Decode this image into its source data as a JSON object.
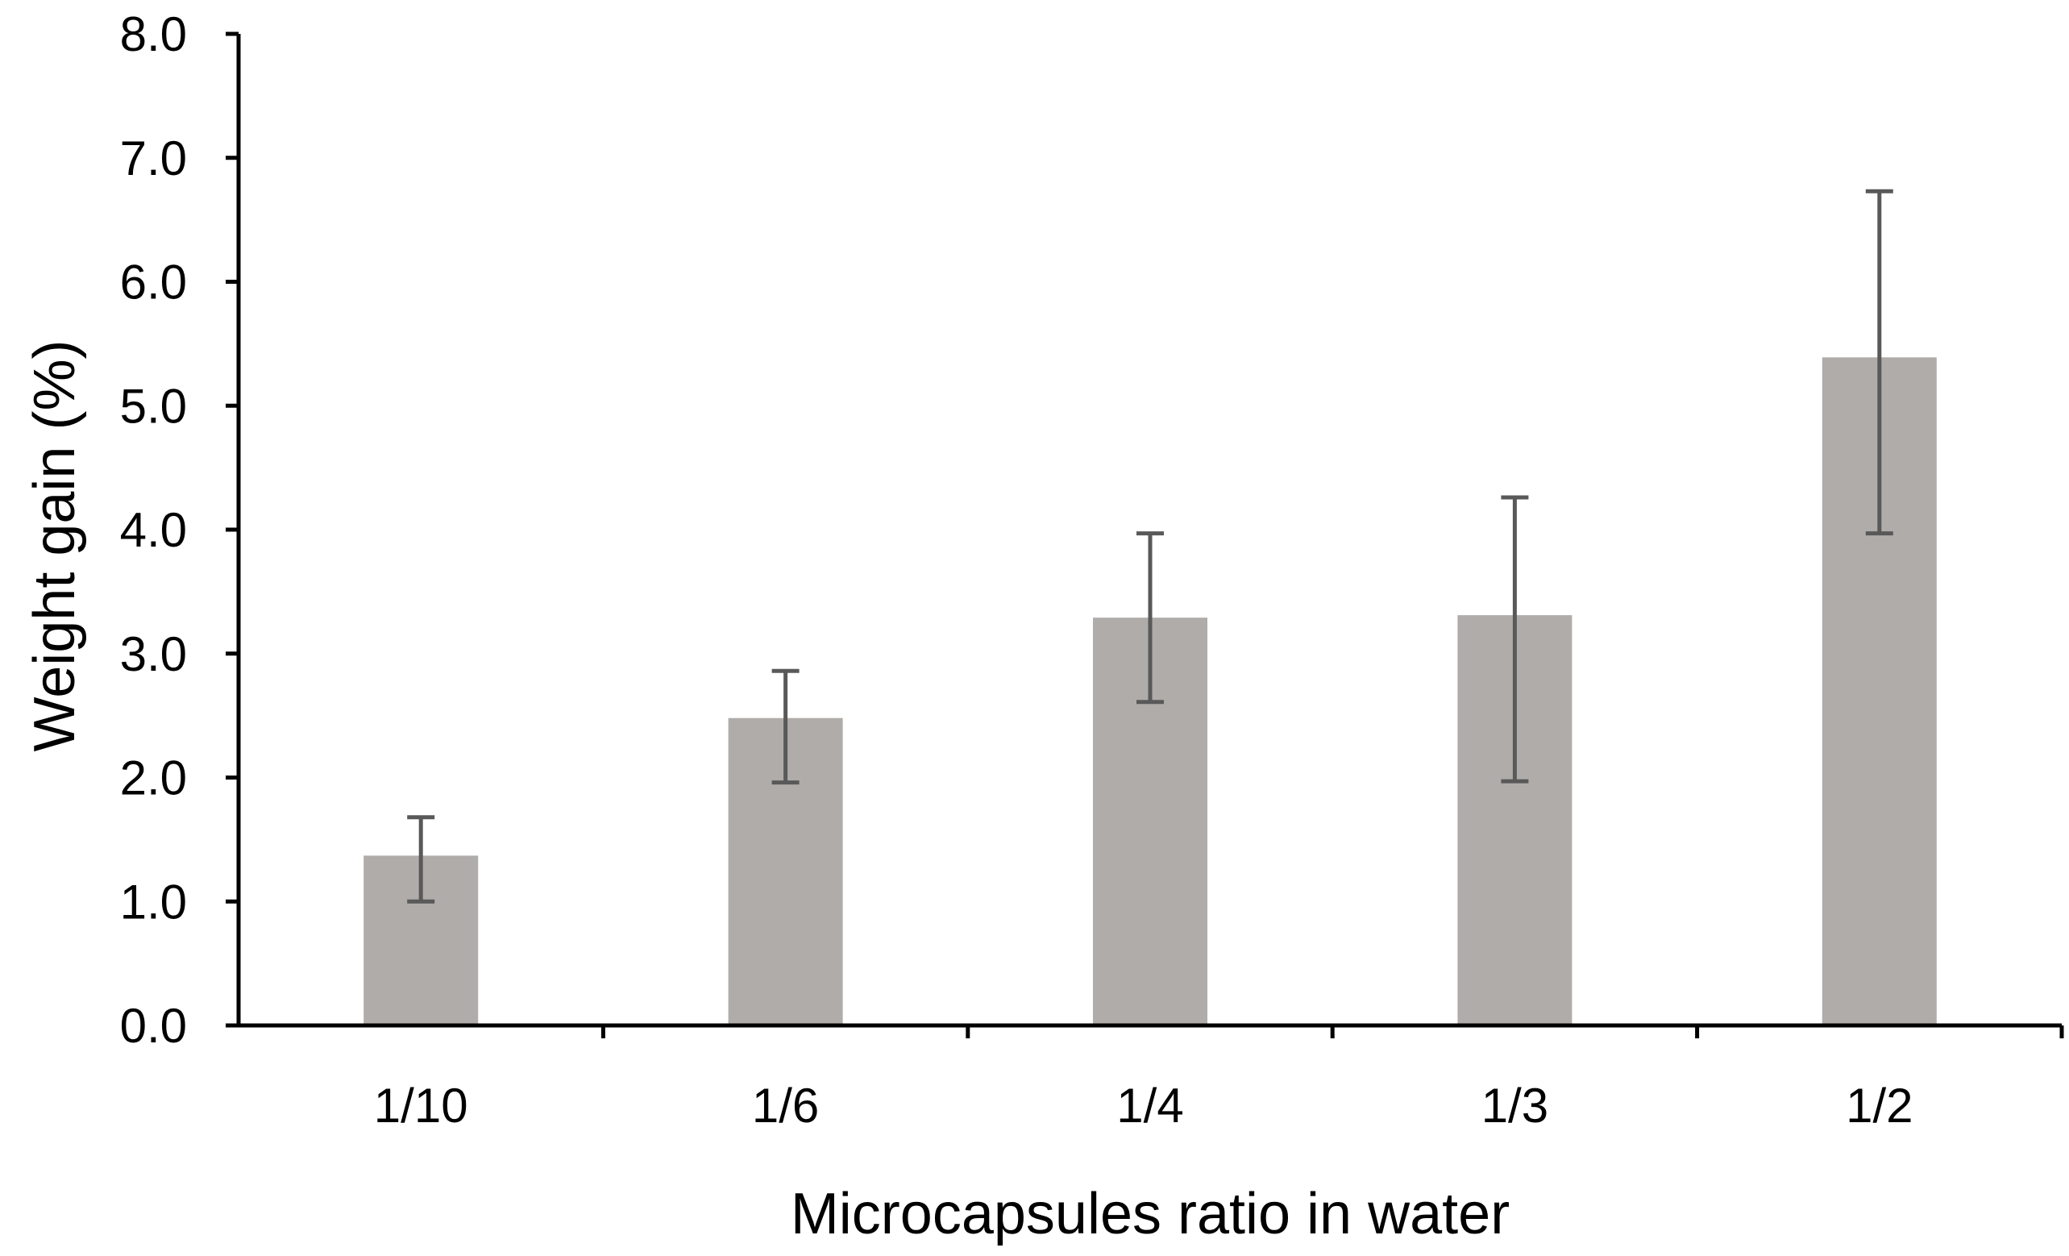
{
  "chart_data": {
    "type": "bar",
    "title": "",
    "xlabel": "Microcapsules ratio in water",
    "ylabel": "Weight gain (%)",
    "categories": [
      "1/10",
      "1/6",
      "1/4",
      "1/3",
      "1/2"
    ],
    "values": [
      1.37,
      2.48,
      3.29,
      3.31,
      5.39
    ],
    "error_low": [
      1.0,
      1.96,
      2.61,
      1.97,
      3.97
    ],
    "error_high": [
      1.68,
      2.86,
      3.97,
      4.26,
      6.73
    ],
    "ylim": [
      0,
      8
    ],
    "yticks": [
      "0.0",
      "1.0",
      "2.0",
      "3.0",
      "4.0",
      "5.0",
      "6.0",
      "7.0",
      "8.0"
    ],
    "grid": false,
    "legend": "none",
    "colors": {
      "bar": "#b0acaa",
      "error_bar": "#595959",
      "axis": "#000000"
    }
  }
}
